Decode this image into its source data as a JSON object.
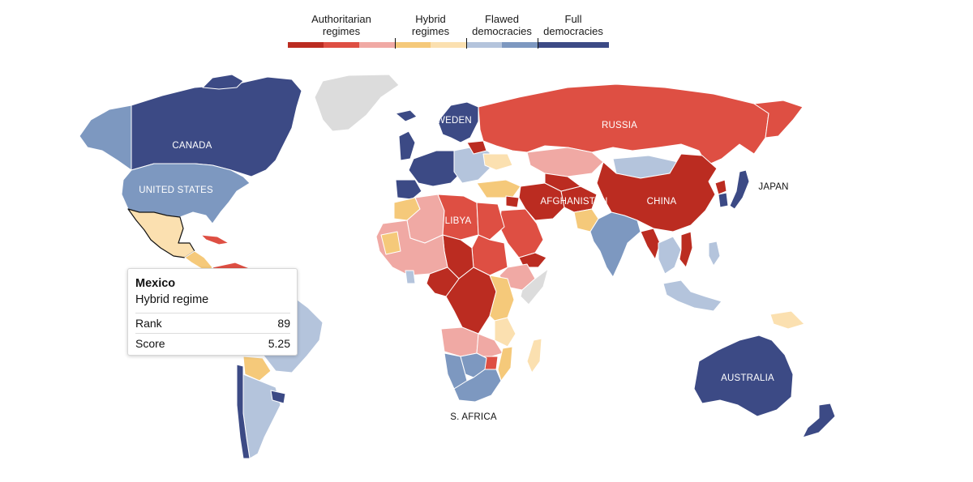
{
  "legend": {
    "categories": [
      {
        "label": "Authoritarian\nregimes",
        "shades": [
          "#bb2c21",
          "#de4f43",
          "#f0a9a4"
        ]
      },
      {
        "label": "Hybrid\nregimes",
        "shades": [
          "#f5c97a",
          "#fbe0b0"
        ]
      },
      {
        "label": "Flawed\ndemocracies",
        "shades": [
          "#b4c4dc",
          "#7d98c0"
        ]
      },
      {
        "label": "Full\ndemocracies",
        "shades": [
          "#3c4a85"
        ]
      }
    ]
  },
  "palette": {
    "authoritarian_dark": "#bb2c21",
    "authoritarian_mid": "#de4f43",
    "authoritarian_light": "#f0a9a4",
    "hybrid_mid": "#f5c97a",
    "hybrid_light": "#fbe0b0",
    "flawed_light": "#b4c4dc",
    "flawed_mid": "#7d98c0",
    "full": "#3c4a85",
    "no_data": "#dcdcdc"
  },
  "map": {
    "labels": {
      "canada": "CANADA",
      "united_states": "UNITED STATES",
      "sweden": "SWEDEN",
      "russia": "RUSSIA",
      "libya": "LIBYA",
      "afghanistan": "AFGHANISTAN",
      "china": "CHINA",
      "japan": "JAPAN",
      "australia": "AUSTRALIA",
      "south_africa": "S. AFRICA"
    }
  },
  "tooltip": {
    "country": "Mexico",
    "regime": "Hybrid regime",
    "rows": [
      {
        "label": "Rank",
        "value": "89"
      },
      {
        "label": "Score",
        "value": "5.25"
      }
    ]
  }
}
